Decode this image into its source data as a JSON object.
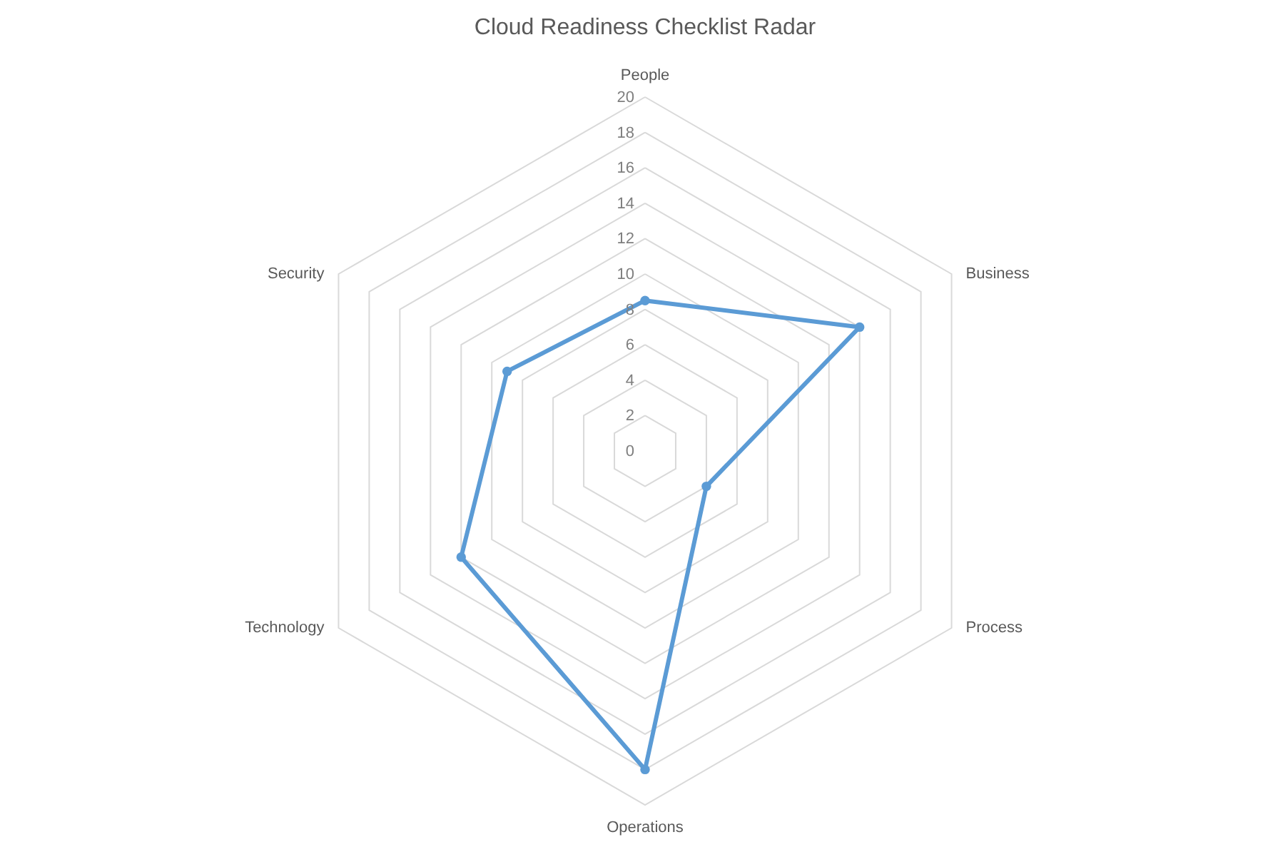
{
  "chart_data": {
    "type": "radar",
    "title": "Cloud Readiness Checklist Radar",
    "categories": [
      "People",
      "Business",
      "Process",
      "Operations",
      "Technology",
      "Security"
    ],
    "series": [
      {
        "color": "#5b9bd5",
        "values": [
          8.5,
          14,
          4,
          18,
          12,
          9
        ]
      }
    ],
    "ylim": [
      0,
      20
    ],
    "yticks": [
      0,
      2,
      4,
      6,
      8,
      10,
      12,
      14,
      16,
      18,
      20
    ],
    "grid": true,
    "marker": "circle"
  }
}
